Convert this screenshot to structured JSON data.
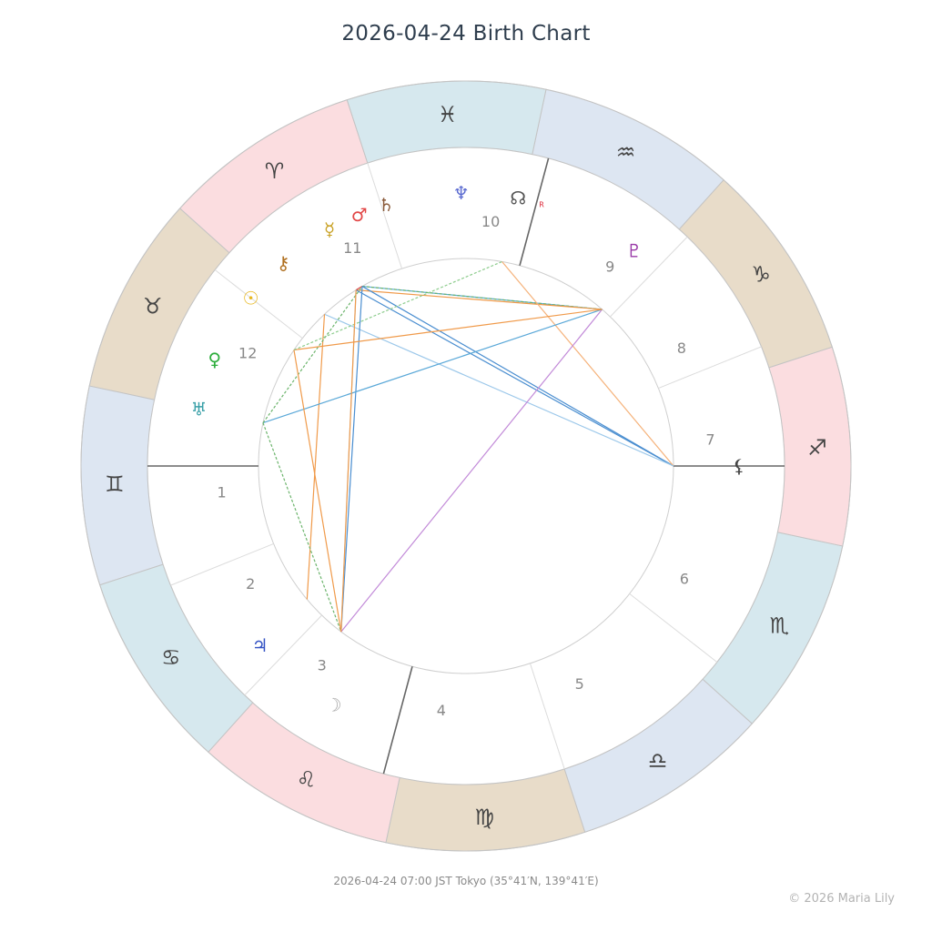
{
  "title": "2026-04-24  Birth Chart",
  "footer": "2026-04-24  07:00 JST  Tokyo (35°41′N, 139°41′E)",
  "copyright": "© 2026 Maria Lily",
  "colors": {
    "fire": "#fbdde0",
    "earth": "#e8dcc9",
    "air": "#dde6f2",
    "water": "#d6e8ee"
  },
  "signs": [
    {
      "name": "Aries",
      "glyph": "♈",
      "element": "fire"
    },
    {
      "name": "Taurus",
      "glyph": "♉",
      "element": "earth"
    },
    {
      "name": "Gemini",
      "glyph": "♊",
      "element": "air"
    },
    {
      "name": "Cancer",
      "glyph": "♋",
      "element": "water"
    },
    {
      "name": "Leo",
      "glyph": "♌",
      "element": "fire"
    },
    {
      "name": "Virgo",
      "glyph": "♍",
      "element": "earth"
    },
    {
      "name": "Libra",
      "glyph": "♎",
      "element": "air"
    },
    {
      "name": "Scorpio",
      "glyph": "♏",
      "element": "water"
    },
    {
      "name": "Sagittarius",
      "glyph": "♐",
      "element": "fire"
    },
    {
      "name": "Capricorn",
      "glyph": "♑",
      "element": "earth"
    },
    {
      "name": "Aquarius",
      "glyph": "♒",
      "element": "air"
    },
    {
      "name": "Pisces",
      "glyph": "♓",
      "element": "water"
    }
  ],
  "ascendant_deg": 72,
  "houses": [
    {
      "number": "1",
      "cusp_deg": 72
    },
    {
      "number": "2",
      "cusp_deg": 94
    },
    {
      "number": "3",
      "cusp_deg": 118
    },
    {
      "number": "4",
      "cusp_deg": 147
    },
    {
      "number": "5",
      "cusp_deg": 180
    },
    {
      "number": "6",
      "cusp_deg": 214
    },
    {
      "number": "7",
      "cusp_deg": 252
    },
    {
      "number": "8",
      "cusp_deg": 274
    },
    {
      "number": "9",
      "cusp_deg": 298
    },
    {
      "number": "10",
      "cusp_deg": 327
    },
    {
      "number": "11",
      "cusp_deg": 0
    },
    {
      "number": "12",
      "cusp_deg": 34
    }
  ],
  "planets": [
    {
      "name": "Sun",
      "glyph": "☉",
      "color": "#e8b820",
      "deg": 34
    },
    {
      "name": "Moon",
      "glyph": "☽",
      "color": "#aaaaaa",
      "deg": 133
    },
    {
      "name": "Mercury",
      "glyph": "☿",
      "color": "#c9a227",
      "deg": 12
    },
    {
      "name": "Venus",
      "glyph": "♀",
      "color": "#2fae3e",
      "deg": 49
    },
    {
      "name": "Mars",
      "glyph": "♂",
      "color": "#e24848",
      "deg": 5
    },
    {
      "name": "Jupiter",
      "glyph": "♃",
      "color": "#3453c4",
      "deg": 113
    },
    {
      "name": "Saturn",
      "glyph": "♄",
      "color": "#8a5a3a",
      "deg": 359
    },
    {
      "name": "Uranus",
      "glyph": "♅",
      "color": "#3aa0a8",
      "deg": 60
    },
    {
      "name": "Neptune",
      "glyph": "♆",
      "color": "#5a6ad0",
      "deg": 343
    },
    {
      "name": "Pluto",
      "glyph": "♇",
      "color": "#9a3aa8",
      "deg": 304
    },
    {
      "name": "Chiron",
      "glyph": "⚷",
      "color": "#b07020",
      "deg": 24
    },
    {
      "name": "North Node",
      "glyph": "☊",
      "color": "#555555",
      "deg": 331,
      "retrograde": "R"
    },
    {
      "name": "Lilith",
      "glyph": "⚸",
      "color": "#444444",
      "deg": 252
    }
  ],
  "aspect_points": [
    {
      "id": "p1",
      "deg": 25
    },
    {
      "id": "p2",
      "deg": 14
    },
    {
      "id": "p3",
      "deg": 12
    },
    {
      "id": "p4",
      "deg": 332
    },
    {
      "id": "p5",
      "deg": 301
    },
    {
      "id": "p6",
      "deg": 252
    },
    {
      "id": "p7",
      "deg": 125
    },
    {
      "id": "p8",
      "deg": 112
    },
    {
      "id": "p9",
      "deg": 60
    },
    {
      "id": "p10",
      "deg": 38
    }
  ],
  "aspects": [
    {
      "from": "p3",
      "to": "p5",
      "color": "#5aa8d8",
      "style": "solid"
    },
    {
      "from": "p3",
      "to": "p5",
      "color": "#6bb46b",
      "style": "dashed"
    },
    {
      "from": "p2",
      "to": "p5",
      "color": "#f09a4a",
      "style": "solid"
    },
    {
      "from": "p2",
      "to": "p3",
      "color": "#e24848",
      "style": "solid"
    },
    {
      "from": "p3",
      "to": "p6",
      "color": "#4a8ed0",
      "style": "solid"
    },
    {
      "from": "p2",
      "to": "p6",
      "color": "#4a8ed0",
      "style": "solid"
    },
    {
      "from": "p4",
      "to": "p6",
      "color": "#f5b27a",
      "style": "solid"
    },
    {
      "from": "p1",
      "to": "p6",
      "color": "#9cc8ea",
      "style": "solid"
    },
    {
      "from": "p3",
      "to": "p7",
      "color": "#4a8ed0",
      "style": "solid"
    },
    {
      "from": "p2",
      "to": "p7",
      "color": "#a8d0ea",
      "style": "solid"
    },
    {
      "from": "p1",
      "to": "p8",
      "color": "#f09a4a",
      "style": "solid"
    },
    {
      "from": "p5",
      "to": "p7",
      "color": "#c28ad8",
      "style": "solid"
    },
    {
      "from": "p9",
      "to": "p7",
      "color": "#6bb46b",
      "style": "dashed"
    },
    {
      "from": "p9",
      "to": "p5",
      "color": "#5aa8d8",
      "style": "solid"
    },
    {
      "from": "p9",
      "to": "p3",
      "color": "#6bb46b",
      "style": "dashed"
    },
    {
      "from": "p10",
      "to": "p5",
      "color": "#f09a4a",
      "style": "solid"
    },
    {
      "from": "p10",
      "to": "p4",
      "color": "#8ccc8c",
      "style": "dashed"
    },
    {
      "from": "p10",
      "to": "p7",
      "color": "#f09a4a",
      "style": "solid"
    },
    {
      "from": "p2",
      "to": "p7",
      "color": "#f09a4a",
      "style": "solid"
    }
  ]
}
